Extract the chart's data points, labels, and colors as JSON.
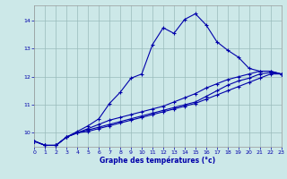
{
  "xlabel": "Graphe des températures (°c)",
  "background_color": "#cce8e8",
  "line_color": "#0000aa",
  "grid_color": "#99bbbb",
  "xlim": [
    0,
    23
  ],
  "ylim": [
    9.5,
    14.55
  ],
  "yticks": [
    10,
    11,
    12,
    13,
    14
  ],
  "xticks": [
    0,
    1,
    2,
    3,
    4,
    5,
    6,
    7,
    8,
    9,
    10,
    11,
    12,
    13,
    14,
    15,
    16,
    17,
    18,
    19,
    20,
    21,
    22,
    23
  ],
  "line1": [
    9.7,
    9.55,
    9.55,
    9.85,
    10.05,
    10.25,
    10.5,
    11.05,
    11.45,
    11.95,
    12.1,
    13.15,
    13.75,
    13.55,
    14.05,
    14.25,
    13.85,
    13.25,
    12.95,
    12.7,
    12.3,
    12.2,
    12.2,
    12.1
  ],
  "line2": [
    9.7,
    9.55,
    9.55,
    9.85,
    10.0,
    10.15,
    10.3,
    10.45,
    10.55,
    10.65,
    10.75,
    10.85,
    10.95,
    11.1,
    11.25,
    11.4,
    11.6,
    11.75,
    11.9,
    12.0,
    12.1,
    12.2,
    12.2,
    12.1
  ],
  "line3": [
    9.7,
    9.55,
    9.55,
    9.85,
    10.0,
    10.1,
    10.2,
    10.3,
    10.4,
    10.5,
    10.6,
    10.7,
    10.8,
    10.9,
    11.0,
    11.1,
    11.3,
    11.5,
    11.7,
    11.85,
    11.95,
    12.1,
    12.15,
    12.1
  ],
  "line4": [
    9.7,
    9.55,
    9.55,
    9.85,
    10.0,
    10.05,
    10.15,
    10.25,
    10.35,
    10.45,
    10.55,
    10.65,
    10.75,
    10.85,
    10.95,
    11.05,
    11.2,
    11.35,
    11.5,
    11.65,
    11.8,
    11.95,
    12.1,
    12.1
  ]
}
